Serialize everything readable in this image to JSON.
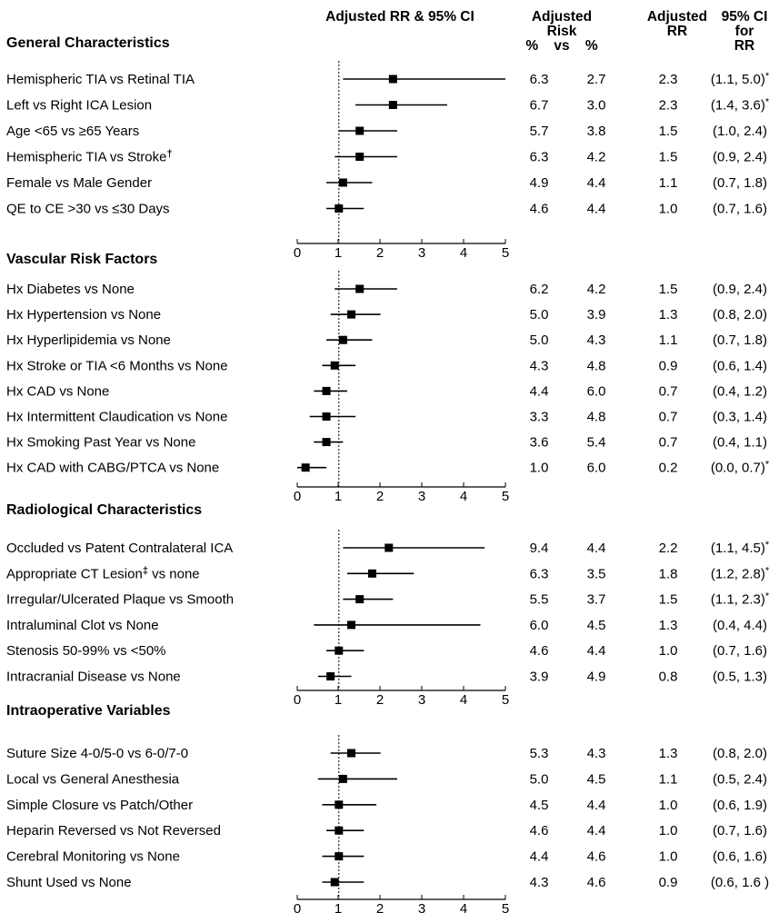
{
  "header": {
    "plot_title": "Adjusted RR & 95% CI",
    "risk_line1": "Adjusted",
    "risk_line2": "Risk",
    "risk_line3": "%    vs    %",
    "rr_line1": "Adjusted",
    "rr_line2": "RR",
    "ci_line1": "95% CI",
    "ci_line2": "for",
    "ci_line3": "RR"
  },
  "chart_data": [
    {
      "type": "forest",
      "title": "General Characteristics",
      "xlim": [
        0,
        5
      ],
      "xticks": [
        "0",
        "1",
        "2",
        "3",
        "4",
        "5"
      ],
      "rows": [
        {
          "label": "Hemispheric TIA vs Retinal TIA",
          "risk_a": "6.3",
          "risk_b": "2.7",
          "rr": 2.3,
          "lo": 1.1,
          "hi": 5.0,
          "rr_text": "2.3",
          "ci_text": "(1.1, 5.0)",
          "sig": "*",
          "mark": ""
        },
        {
          "label": "Left vs Right ICA Lesion",
          "risk_a": "6.7",
          "risk_b": "3.0",
          "rr": 2.3,
          "lo": 1.4,
          "hi": 3.6,
          "rr_text": "2.3",
          "ci_text": "(1.4, 3.6)",
          "sig": "*",
          "mark": ""
        },
        {
          "label": "Age <65 vs ≥65 Years",
          "risk_a": "5.7",
          "risk_b": "3.8",
          "rr": 1.5,
          "lo": 1.0,
          "hi": 2.4,
          "rr_text": "1.5",
          "ci_text": "(1.0, 2.4)",
          "sig": "",
          "mark": ""
        },
        {
          "label": "Hemispheric TIA vs Stroke",
          "risk_a": "6.3",
          "risk_b": "4.2",
          "rr": 1.5,
          "lo": 0.9,
          "hi": 2.4,
          "rr_text": "1.5",
          "ci_text": "(0.9, 2.4)",
          "sig": "",
          "mark": "†"
        },
        {
          "label": "Female vs Male Gender",
          "risk_a": "4.9",
          "risk_b": "4.4",
          "rr": 1.1,
          "lo": 0.7,
          "hi": 1.8,
          "rr_text": "1.1",
          "ci_text": "(0.7, 1.8)",
          "sig": "",
          "mark": ""
        },
        {
          "label": "QE to CE >30 vs ≤30 Days",
          "risk_a": "4.6",
          "risk_b": "4.4",
          "rr": 1.0,
          "lo": 0.7,
          "hi": 1.6,
          "rr_text": "1.0",
          "ci_text": "(0.7, 1.6)",
          "sig": "",
          "mark": ""
        }
      ]
    },
    {
      "type": "forest",
      "title": "Vascular Risk Factors",
      "xlim": [
        0,
        5
      ],
      "xticks": [
        "0",
        "1",
        "2",
        "3",
        "4",
        "5"
      ],
      "rows": [
        {
          "label": "Hx Diabetes vs None",
          "risk_a": "6.2",
          "risk_b": "4.2",
          "rr": 1.5,
          "lo": 0.9,
          "hi": 2.4,
          "rr_text": "1.5",
          "ci_text": "(0.9, 2.4)",
          "sig": "",
          "mark": ""
        },
        {
          "label": "Hx Hypertension vs None",
          "risk_a": "5.0",
          "risk_b": "3.9",
          "rr": 1.3,
          "lo": 0.8,
          "hi": 2.0,
          "rr_text": "1.3",
          "ci_text": "(0.8, 2.0)",
          "sig": "",
          "mark": ""
        },
        {
          "label": "Hx Hyperlipidemia vs None",
          "risk_a": "5.0",
          "risk_b": "4.3",
          "rr": 1.1,
          "lo": 0.7,
          "hi": 1.8,
          "rr_text": "1.1",
          "ci_text": "(0.7, 1.8)",
          "sig": "",
          "mark": ""
        },
        {
          "label": "Hx Stroke or TIA <6 Months vs None",
          "risk_a": "4.3",
          "risk_b": "4.8",
          "rr": 0.9,
          "lo": 0.6,
          "hi": 1.4,
          "rr_text": "0.9",
          "ci_text": "(0.6, 1.4)",
          "sig": "",
          "mark": ""
        },
        {
          "label": "Hx CAD vs None",
          "risk_a": "4.4",
          "risk_b": "6.0",
          "rr": 0.7,
          "lo": 0.4,
          "hi": 1.2,
          "rr_text": "0.7",
          "ci_text": "(0.4, 1.2)",
          "sig": "",
          "mark": ""
        },
        {
          "label": "Hx Intermittent Claudication vs None",
          "risk_a": "3.3",
          "risk_b": "4.8",
          "rr": 0.7,
          "lo": 0.3,
          "hi": 1.4,
          "rr_text": "0.7",
          "ci_text": "(0.3, 1.4)",
          "sig": "",
          "mark": ""
        },
        {
          "label": "Hx Smoking Past Year vs None",
          "risk_a": "3.6",
          "risk_b": "5.4",
          "rr": 0.7,
          "lo": 0.4,
          "hi": 1.1,
          "rr_text": "0.7",
          "ci_text": "(0.4, 1.1)",
          "sig": "",
          "mark": ""
        },
        {
          "label": "Hx CAD with CABG/PTCA vs None",
          "risk_a": "1.0",
          "risk_b": "6.0",
          "rr": 0.2,
          "lo": 0.0,
          "hi": 0.7,
          "rr_text": "0.2",
          "ci_text": "(0.0, 0.7)",
          "sig": "*",
          "mark": ""
        }
      ]
    },
    {
      "type": "forest",
      "title": "Radiological Characteristics",
      "xlim": [
        0,
        5
      ],
      "xticks": [
        "0",
        "1",
        "2",
        "3",
        "4",
        "5"
      ],
      "rows": [
        {
          "label": "Occluded vs Patent Contralateral ICA",
          "risk_a": "9.4",
          "risk_b": "4.4",
          "rr": 2.2,
          "lo": 1.1,
          "hi": 4.5,
          "rr_text": "2.2",
          "ci_text": "(1.1, 4.5)",
          "sig": "*",
          "mark": ""
        },
        {
          "label": "Appropriate CT Lesion",
          "label_after": " vs none",
          "risk_a": "6.3",
          "risk_b": "3.5",
          "rr": 1.8,
          "lo": 1.2,
          "hi": 2.8,
          "rr_text": "1.8",
          "ci_text": "(1.2, 2.8)",
          "sig": "*",
          "mark": "‡"
        },
        {
          "label": "Irregular/Ulcerated Plaque vs Smooth",
          "risk_a": "5.5",
          "risk_b": "3.7",
          "rr": 1.5,
          "lo": 1.1,
          "hi": 2.3,
          "rr_text": "1.5",
          "ci_text": "(1.1, 2.3)",
          "sig": "*",
          "mark": ""
        },
        {
          "label": "Intraluminal Clot vs None",
          "risk_a": "6.0",
          "risk_b": "4.5",
          "rr": 1.3,
          "lo": 0.4,
          "hi": 4.4,
          "rr_text": "1.3",
          "ci_text": "(0.4, 4.4)",
          "sig": "",
          "mark": ""
        },
        {
          "label": "Stenosis 50-99% vs <50%",
          "risk_a": "4.6",
          "risk_b": "4.4",
          "rr": 1.0,
          "lo": 0.7,
          "hi": 1.6,
          "rr_text": "1.0",
          "ci_text": "(0.7, 1.6)",
          "sig": "",
          "mark": ""
        },
        {
          "label": "Intracranial Disease vs None",
          "risk_a": "3.9",
          "risk_b": "4.9",
          "rr": 0.8,
          "lo": 0.5,
          "hi": 1.3,
          "rr_text": "0.8",
          "ci_text": "(0.5, 1.3)",
          "sig": "",
          "mark": ""
        }
      ]
    },
    {
      "type": "forest",
      "title": "Intraoperative Variables",
      "xlim": [
        0,
        5
      ],
      "xticks": [
        "0",
        "1",
        "2",
        "3",
        "4",
        "5"
      ],
      "rows": [
        {
          "label": "Suture Size 4-0/5-0 vs 6-0/7-0",
          "risk_a": "5.3",
          "risk_b": "4.3",
          "rr": 1.3,
          "lo": 0.8,
          "hi": 2.0,
          "rr_text": "1.3",
          "ci_text": "(0.8, 2.0)",
          "sig": "",
          "mark": ""
        },
        {
          "label": "Local vs General Anesthesia",
          "risk_a": "5.0",
          "risk_b": "4.5",
          "rr": 1.1,
          "lo": 0.5,
          "hi": 2.4,
          "rr_text": "1.1",
          "ci_text": "(0.5, 2.4)",
          "sig": "",
          "mark": ""
        },
        {
          "label": "Simple Closure vs Patch/Other",
          "risk_a": "4.5",
          "risk_b": "4.4",
          "rr": 1.0,
          "lo": 0.6,
          "hi": 1.9,
          "rr_text": "1.0",
          "ci_text": "(0.6, 1.9)",
          "sig": "",
          "mark": ""
        },
        {
          "label": "Heparin Reversed vs Not Reversed",
          "risk_a": "4.6",
          "risk_b": "4.4",
          "rr": 1.0,
          "lo": 0.7,
          "hi": 1.6,
          "rr_text": "1.0",
          "ci_text": "(0.7, 1.6)",
          "sig": "",
          "mark": ""
        },
        {
          "label": "Cerebral Monitoring vs None",
          "risk_a": "4.4",
          "risk_b": "4.6",
          "rr": 1.0,
          "lo": 0.6,
          "hi": 1.6,
          "rr_text": "1.0",
          "ci_text": "(0.6, 1.6)",
          "sig": "",
          "mark": ""
        },
        {
          "label": "Shunt Used vs None",
          "risk_a": "4.3",
          "risk_b": "4.6",
          "rr": 0.9,
          "lo": 0.6,
          "hi": 1.6,
          "rr_text": "0.9",
          "ci_text": "(0.6, 1.6 )",
          "sig": "",
          "mark": ""
        }
      ]
    }
  ]
}
